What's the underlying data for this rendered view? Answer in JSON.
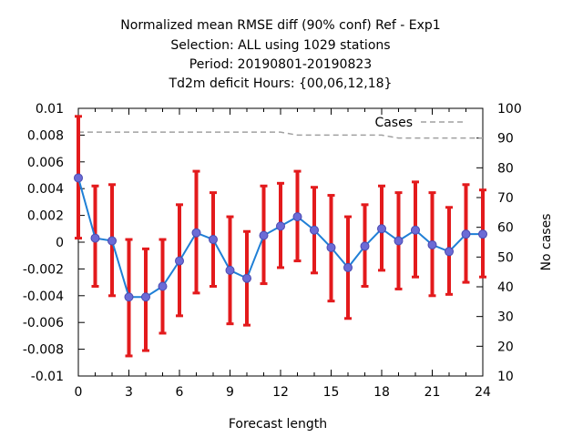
{
  "chart_data": {
    "type": "line",
    "title_lines": [
      "Normalized mean RMSE diff (90% conf) Ref - Exp1",
      "Selection: ALL using  1029 stations",
      "Period: 20190801-20190823",
      "Td2m deficit   Hours: {00,06,12,18}"
    ],
    "xlabel": "Forecast length",
    "ylabel_left": "",
    "ylabel_right": "No cases",
    "xlim": [
      0,
      24
    ],
    "ylim_left": [
      -0.01,
      0.01
    ],
    "ylim_right": [
      10,
      100
    ],
    "x_ticks": [
      "0",
      "3",
      "6",
      "9",
      "12",
      "15",
      "18",
      "21",
      "24"
    ],
    "y_ticks_left": [
      "0.01",
      "0.008",
      "0.006",
      "0.004",
      "0.002",
      "0",
      "-0.002",
      "-0.004",
      "-0.006",
      "-0.008",
      "-0.01"
    ],
    "y_ticks_right": [
      "100",
      "90",
      "80",
      "70",
      "60",
      "50",
      "40",
      "30",
      "20",
      "10"
    ],
    "grid": false,
    "legend": {
      "position": "top-right",
      "entries": [
        "Cases"
      ]
    },
    "x": [
      0,
      1,
      2,
      3,
      4,
      5,
      6,
      7,
      8,
      9,
      10,
      11,
      12,
      13,
      14,
      15,
      16,
      17,
      18,
      19,
      20,
      21,
      22,
      23,
      24
    ],
    "series": [
      {
        "axis": "left",
        "color": "#1f7fd6",
        "marker_color": "#6b6bd6",
        "values": [
          0.0048,
          0.0003,
          0.0001,
          -0.0041,
          -0.0041,
          -0.0033,
          -0.0014,
          0.0007,
          0.0002,
          -0.0021,
          -0.0027,
          0.0005,
          0.0012,
          0.0019,
          0.0009,
          -0.0004,
          -0.0019,
          -0.0003,
          0.001,
          0.0001,
          0.0009,
          -0.0002,
          -0.0007,
          0.0006,
          0.0006
        ],
        "error_low": [
          0.0003,
          -0.0033,
          -0.004,
          -0.0085,
          -0.0081,
          -0.0068,
          -0.0055,
          -0.0038,
          -0.0033,
          -0.0061,
          -0.0062,
          -0.0031,
          -0.0019,
          -0.0014,
          -0.0023,
          -0.0044,
          -0.0057,
          -0.0033,
          -0.0021,
          -0.0035,
          -0.0026,
          -0.004,
          -0.0039,
          -0.003,
          -0.0026
        ],
        "error_high": [
          0.0094,
          0.0042,
          0.0043,
          0.0002,
          -0.0005,
          0.0002,
          0.0028,
          0.0053,
          0.0037,
          0.0019,
          0.0008,
          0.0042,
          0.0044,
          0.0053,
          0.0041,
          0.0035,
          0.0019,
          0.0028,
          0.0042,
          0.0037,
          0.0045,
          0.0037,
          0.0026,
          0.0043,
          0.0039
        ],
        "error_color": "#e31a1c"
      },
      {
        "name": "Cases",
        "axis": "right",
        "color": "#a0a0a0",
        "dash": "dashed",
        "values": [
          92,
          92,
          92,
          92,
          92,
          92,
          92,
          92,
          92,
          92,
          92,
          92,
          92,
          91,
          91,
          91,
          91,
          91,
          91,
          90,
          90,
          90,
          90,
          90,
          90
        ]
      }
    ]
  }
}
